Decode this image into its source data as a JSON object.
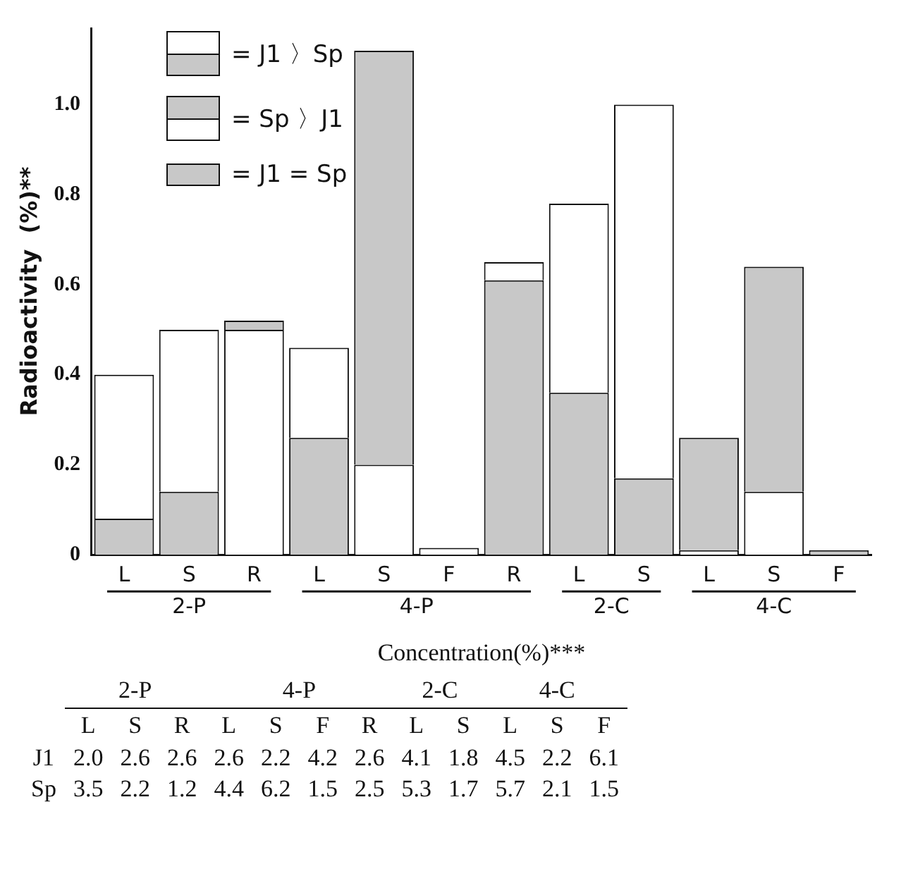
{
  "chart_data": {
    "type": "bar",
    "stacked": true,
    "ylabel": "Radioactivity  (%)**",
    "xlabel": "Concentration(%)***",
    "categories": [
      "L",
      "S",
      "R",
      "L",
      "S",
      "F",
      "R",
      "L",
      "S",
      "L",
      "S",
      "F"
    ],
    "series": [
      {
        "colors": [
          "#c8c8c8",
          "#c8c8c8",
          "#ffffff",
          "#c8c8c8",
          "#ffffff",
          "#ffffff",
          "#c8c8c8",
          "#c8c8c8",
          "#c8c8c8",
          "#ffffff",
          "#ffffff",
          "#c8c8c8"
        ],
        "values": [
          0.08,
          0.14,
          0.5,
          0.26,
          0.2,
          0.015,
          0.61,
          0.36,
          0.17,
          0.01,
          0.14,
          0.01
        ]
      },
      {
        "colors": [
          "#ffffff",
          "#ffffff",
          "#c8c8c8",
          "#ffffff",
          "#c8c8c8",
          "#ffffff",
          "#ffffff",
          "#ffffff",
          "#ffffff",
          "#c8c8c8",
          "#c8c8c8",
          "#ffffff"
        ],
        "values": [
          0.32,
          0.36,
          0.02,
          0.2,
          0.92,
          null,
          0.04,
          0.42,
          0.83,
          0.25,
          0.5,
          null
        ]
      }
    ],
    "ylim": [
      0,
      1.17
    ],
    "yticks": [
      0,
      0.2,
      0.4,
      0.6,
      0.8,
      {
        "value": 1,
        "label": "1.0"
      }
    ],
    "grid": false,
    "annotations": [
      "= J1 〉Sp",
      "= Sp 〉J1",
      "= J1 = Sp",
      "2-P",
      "4-P",
      "2-C",
      "4-C",
      "J1 2.0 2.6 2.6 2.6 2.2 4.2 2.6 4.1 1.8 4.5 2.2 6.1",
      "Sp 3.5 2.2 1.2 4.4 6.2 1.5 2.5 5.3 1.7 5.7 2.1 1.5"
    ]
  }
}
